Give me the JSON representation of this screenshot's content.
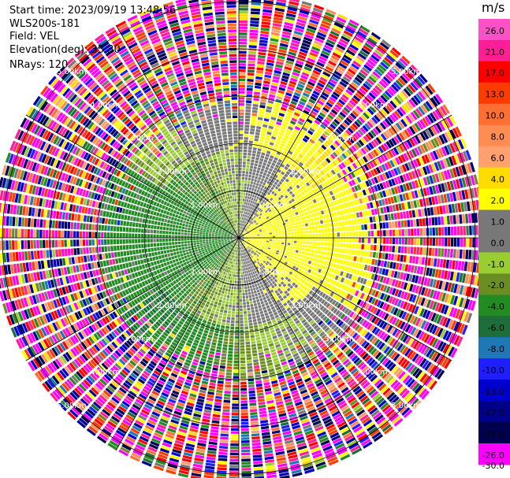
{
  "header": {
    "start_time": "Start time: 2023/09/19 13:48:56",
    "instrument": "WLS200s-181",
    "field": "Field: VEL",
    "elevation": "Elevation(deg): 35.30",
    "nrays": "NRays: 120"
  },
  "colorbar": {
    "unit": "m/s",
    "ticks": [
      "26.0",
      "21.0",
      "17.0",
      "13.0",
      "10.0",
      "8.0",
      "6.0",
      "4.0",
      "2.0",
      "1.0",
      "0.0",
      "-1.0",
      "-2.0",
      "-4.0",
      "-6.0",
      "-8.0",
      "-10.0",
      "-13.0",
      "-17.0",
      "-21.0",
      "-26.0",
      "-30.0"
    ],
    "colors": [
      "#ff50c8",
      "#ff1e96",
      "#ff0000",
      "#ff3c00",
      "#ff6e32",
      "#ff8c50",
      "#ffa06e",
      "#ffdc00",
      "#ffff00",
      "#787878",
      "#787878",
      "#9acd32",
      "#6b8e23",
      "#228b22",
      "#1e6e3c",
      "#1e78b4",
      "#1e1eff",
      "#0000cd",
      "#00008b",
      "#000050",
      "#ff00ff"
    ]
  },
  "chart_data": {
    "type": "ppi",
    "field": "VEL",
    "units": "m/s",
    "nrays": 120,
    "range_rings_km": [
      1.0,
      2.0,
      3.0,
      4.0,
      5.0
    ],
    "ring_labels": [
      "1.00km",
      "2.00km",
      "3.00km",
      "4.00km",
      "5.00km"
    ],
    "max_range_km": 5.2,
    "spokes_deg": [
      0,
      30,
      60,
      90,
      120,
      150
    ],
    "velocity_pattern": [
      {
        "region": "range 0.6-2.0 km, east sector",
        "velocity_ms": [
          2.0,
          4.0
        ]
      },
      {
        "region": "range 0.6-2.0 km, west sector",
        "velocity_ms": [
          -2.0,
          -1.0
        ]
      },
      {
        "region": "range 2.0-2.8 km, north arc",
        "velocity_ms": [
          2.0,
          4.0
        ]
      },
      {
        "region": "range 2.0-3.0 km, south arc",
        "velocity_ms": [
          -2.0,
          -1.0
        ]
      },
      {
        "region": "range > 3.0 km",
        "velocity_ms": "noise (all values)"
      }
    ]
  }
}
